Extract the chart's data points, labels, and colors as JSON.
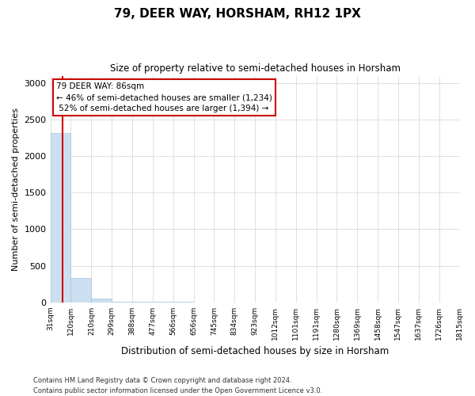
{
  "title": "79, DEER WAY, HORSHAM, RH12 1PX",
  "subtitle": "Size of property relative to semi-detached houses in Horsham",
  "xlabel": "Distribution of semi-detached houses by size in Horsham",
  "ylabel": "Number of semi-detached properties",
  "bar_color": "#ccdff0",
  "bar_edge_color": "#a0c4e0",
  "annotation_box_color": "#ffffff",
  "annotation_box_edge": "#cc0000",
  "property_line_color": "#cc0000",
  "property_size": 86,
  "property_label": "79 DEER WAY: 86sqm",
  "pct_smaller": 46,
  "pct_larger": 52,
  "count_smaller": 1234,
  "count_larger": 1394,
  "footer_line1": "Contains HM Land Registry data © Crown copyright and database right 2024.",
  "footer_line2": "Contains public sector information licensed under the Open Government Licence v3.0.",
  "bins": [
    31,
    120,
    210,
    299,
    388,
    477,
    566,
    656,
    745,
    834,
    923,
    1012,
    1101,
    1191,
    1280,
    1369,
    1458,
    1547,
    1637,
    1726,
    1815
  ],
  "counts": [
    2310,
    330,
    50,
    5,
    3,
    2,
    2,
    1,
    1,
    1,
    1,
    1,
    0,
    0,
    0,
    0,
    0,
    0,
    0,
    0
  ],
  "tick_labels": [
    "31sqm",
    "120sqm",
    "210sqm",
    "299sqm",
    "388sqm",
    "477sqm",
    "566sqm",
    "656sqm",
    "745sqm",
    "834sqm",
    "923sqm",
    "1012sqm",
    "1101sqm",
    "1191sqm",
    "1280sqm",
    "1369sqm",
    "1458sqm",
    "1547sqm",
    "1637sqm",
    "1726sqm",
    "1815sqm"
  ],
  "ylim": [
    0,
    3100
  ],
  "yticks": [
    0,
    500,
    1000,
    1500,
    2000,
    2500,
    3000
  ]
}
